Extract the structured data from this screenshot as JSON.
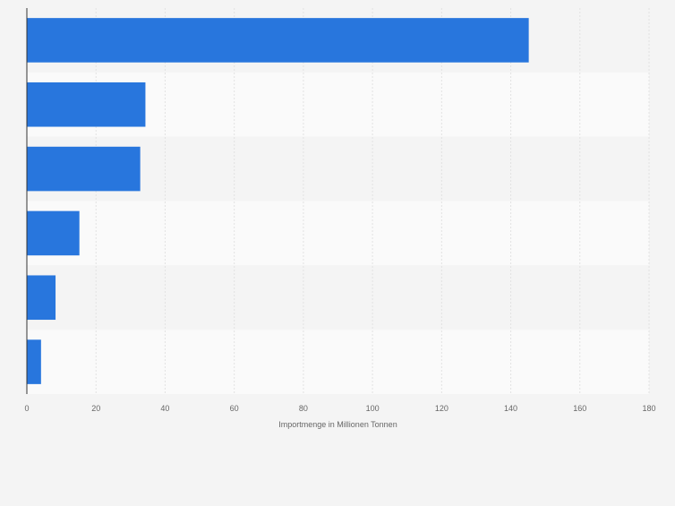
{
  "chart_data": {
    "type": "bar",
    "orientation": "horizontal",
    "categories": [
      "",
      "",
      "",
      "",
      "",
      ""
    ],
    "values": [
      145.2,
      34.3,
      32.8,
      15.2,
      8.3,
      4.1
    ],
    "xlabel": "Importmenge in Millionen Tonnen",
    "xlim": [
      0,
      180
    ],
    "xticks": [
      0,
      20,
      40,
      60,
      80,
      100,
      120,
      140,
      160,
      180
    ],
    "grid": true,
    "colors": {
      "bar": "#2876dd",
      "band_dark": "#f4f4f4",
      "band_light": "#fafafa",
      "grid": "#e2e2e2",
      "axis": "#333333",
      "text": "#666666"
    }
  }
}
